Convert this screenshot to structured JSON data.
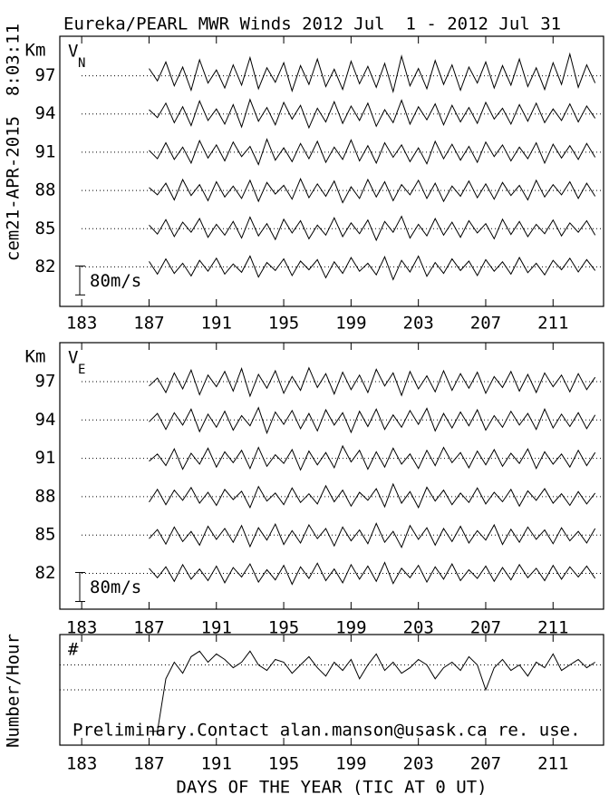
{
  "chart_data": [
    {
      "type": "line",
      "title": "Eureka/PEARL MWR Winds 2012 Jul  1 - 2012 Jul 31",
      "timestamp": "8:03:11",
      "run_label": "cem21-APR-2015",
      "ylabel": "Km",
      "panel_label": "V",
      "panel_subscript": "N",
      "color": "#000000",
      "xlim": [
        181.7,
        214
      ],
      "xticks": [
        183,
        187,
        191,
        195,
        199,
        203,
        207,
        211
      ],
      "ylim": [
        78.9,
        100.1
      ],
      "yticks": [
        82,
        85,
        88,
        91,
        94,
        97
      ],
      "grid": true,
      "scale_bar": {
        "value": 80,
        "label": "80m/s",
        "km": 2.27
      },
      "x": [
        187,
        187.5,
        188,
        188.5,
        189,
        189.5,
        190,
        190.5,
        191,
        191.5,
        192,
        192.5,
        193,
        193.5,
        194,
        194.5,
        195,
        195.5,
        196,
        196.5,
        197,
        197.5,
        198,
        198.5,
        199,
        199.5,
        200,
        200.5,
        201,
        201.5,
        202,
        202.5,
        203,
        203.5,
        204,
        204.5,
        205,
        205.5,
        206,
        206.5,
        207,
        207.5,
        208,
        208.5,
        209,
        209.5,
        210,
        210.5,
        211,
        211.5,
        212,
        212.5,
        213,
        213.5
      ],
      "series": [
        {
          "baseline": 82,
          "values": [
            15,
            -20,
            22,
            -18,
            10,
            -25,
            18,
            -12,
            24,
            -20,
            8,
            -15,
            30,
            -28,
            12,
            -10,
            22,
            -24,
            16,
            -8,
            20,
            -30,
            14,
            -18,
            26,
            -12,
            10,
            -22,
            28,
            -35,
            18,
            -14,
            30,
            -26,
            12,
            -18,
            22,
            -10,
            16,
            -24,
            20,
            -12,
            14,
            -20,
            26,
            -16,
            10,
            -22,
            18,
            -8,
            24,
            -14,
            20,
            -10
          ]
        },
        {
          "baseline": 85,
          "values": [
            10,
            -15,
            25,
            -22,
            18,
            -10,
            28,
            -24,
            12,
            -18,
            20,
            -26,
            32,
            -20,
            14,
            -30,
            26,
            -12,
            22,
            -28,
            10,
            -18,
            30,
            -22,
            16,
            -14,
            24,
            -32,
            20,
            -10,
            34,
            -26,
            12,
            -20,
            28,
            -18,
            18,
            -24,
            22,
            -12,
            14,
            -28,
            26,
            -16,
            20,
            -22,
            12,
            -14,
            24,
            -20,
            16,
            -10,
            22,
            -18
          ]
        },
        {
          "baseline": 88,
          "values": [
            8,
            -12,
            20,
            -26,
            30,
            -14,
            16,
            -28,
            24,
            -18,
            12,
            -22,
            28,
            -30,
            22,
            -10,
            14,
            -24,
            32,
            -20,
            18,
            -16,
            26,
            -34,
            10,
            -22,
            30,
            -18,
            24,
            -28,
            16,
            -12,
            28,
            -22,
            20,
            -30,
            12,
            -16,
            26,
            -20,
            18,
            -24,
            22,
            -14,
            14,
            -26,
            28,
            -18,
            16,
            -12,
            24,
            -22,
            20,
            -16
          ]
        },
        {
          "baseline": 91,
          "values": [
            5,
            -18,
            26,
            -20,
            14,
            -30,
            32,
            -16,
            20,
            -24,
            28,
            -12,
            16,
            -34,
            36,
            -22,
            12,
            -26,
            24,
            -18,
            30,
            -28,
            14,
            -20,
            34,
            -24,
            18,
            -30,
            26,
            -14,
            20,
            -26,
            12,
            -32,
            30,
            -18,
            22,
            -22,
            16,
            -28,
            28,
            -12,
            20,
            -24,
            14,
            -18,
            26,
            -30,
            22,
            -16,
            18,
            -20,
            24,
            -14
          ]
        },
        {
          "baseline": 94,
          "values": [
            12,
            -10,
            30,
            -24,
            20,
            -32,
            36,
            -18,
            14,
            -28,
            26,
            -36,
            40,
            -20,
            18,
            -30,
            32,
            -14,
            24,
            -38,
            16,
            -22,
            34,
            -26,
            22,
            -18,
            30,
            -34,
            12,
            -24,
            38,
            -28,
            20,
            -16,
            28,
            -30,
            24,
            -22,
            18,
            -26,
            32,
            -14,
            16,
            -28,
            26,
            -20,
            30,
            -24,
            14,
            -18,
            28,
            -22,
            22,
            -12
          ]
        },
        {
          "baseline": 97,
          "values": [
            20,
            -14,
            38,
            -28,
            24,
            -40,
            44,
            -20,
            16,
            -34,
            30,
            -26,
            50,
            -36,
            22,
            -18,
            36,
            -42,
            28,
            -24,
            46,
            -30,
            18,
            -38,
            40,
            -22,
            26,
            -32,
            34,
            -44,
            54,
            -28,
            20,
            -36,
            42,
            -24,
            30,
            -40,
            24,
            -20,
            38,
            -34,
            28,
            -26,
            46,
            -30,
            22,
            -38,
            36,
            -24,
            60,
            -32,
            30,
            -20
          ]
        }
      ]
    },
    {
      "type": "line",
      "ylabel": "Km",
      "panel_label": "V",
      "panel_subscript": "E",
      "color": "#000000",
      "xlim": [
        181.7,
        214
      ],
      "xticks": [
        183,
        187,
        191,
        195,
        199,
        203,
        207,
        211
      ],
      "ylim": [
        79.2,
        100.05
      ],
      "yticks": [
        82,
        85,
        88,
        91,
        94,
        97
      ],
      "grid": true,
      "scale_bar": {
        "value": 80,
        "label": "80m/s",
        "km": 2.27
      },
      "x": [
        187,
        187.5,
        188,
        188.5,
        189,
        189.5,
        190,
        190.5,
        191,
        191.5,
        192,
        192.5,
        193,
        193.5,
        194,
        194.5,
        195,
        195.5,
        196,
        196.5,
        197,
        197.5,
        198,
        198.5,
        199,
        199.5,
        200,
        200.5,
        201,
        201.5,
        202,
        202.5,
        203,
        203.5,
        204,
        204.5,
        205,
        205.5,
        206,
        206.5,
        207,
        207.5,
        208,
        208.5,
        209,
        209.5,
        210,
        210.5,
        211,
        211.5,
        212,
        212.5,
        213,
        213.5
      ],
      "series": [
        {
          "baseline": 82,
          "values": [
            14,
            -12,
            18,
            -22,
            24,
            -16,
            12,
            -20,
            20,
            -26,
            16,
            -10,
            26,
            -24,
            10,
            -18,
            22,
            -30,
            18,
            -14,
            28,
            -20,
            12,
            -26,
            24,
            -16,
            20,
            -22,
            30,
            -28,
            14,
            -12,
            22,
            -24,
            18,
            -16,
            26,
            -20,
            10,
            -14,
            20,
            -22,
            16,
            -18,
            24,
            -12,
            14,
            -20,
            22,
            -16,
            18,
            -10,
            20,
            -14
          ]
        },
        {
          "baseline": 85,
          "values": [
            -10,
            15,
            -25,
            22,
            -18,
            10,
            -28,
            24,
            -12,
            18,
            -20,
            26,
            -32,
            20,
            -14,
            30,
            -26,
            12,
            -22,
            28,
            -10,
            18,
            -30,
            22,
            -16,
            14,
            -24,
            32,
            -20,
            10,
            -34,
            26,
            -12,
            20,
            -28,
            18,
            -18,
            24,
            -22,
            12,
            -14,
            28,
            -26,
            16,
            -20,
            22,
            -12,
            14,
            -24,
            20,
            -16,
            10,
            -22,
            18
          ]
        },
        {
          "baseline": 88,
          "values": [
            -15,
            20,
            -22,
            18,
            -10,
            25,
            -18,
            12,
            -24,
            20,
            -8,
            15,
            -30,
            28,
            -12,
            10,
            -22,
            24,
            -16,
            8,
            -20,
            30,
            -14,
            18,
            -26,
            12,
            -10,
            22,
            -28,
            35,
            -18,
            14,
            -30,
            26,
            -12,
            18,
            -22,
            10,
            -16,
            24,
            -20,
            12,
            -14,
            20,
            -26,
            16,
            -10,
            22,
            -18,
            8,
            -24,
            14,
            -20,
            10
          ]
        },
        {
          "baseline": 91,
          "values": [
            -8,
            12,
            -20,
            26,
            -30,
            14,
            -16,
            28,
            -24,
            18,
            -12,
            22,
            -28,
            30,
            -22,
            10,
            -14,
            24,
            -32,
            20,
            -18,
            16,
            -26,
            34,
            -10,
            22,
            -30,
            18,
            -24,
            28,
            -16,
            12,
            -28,
            22,
            -20,
            30,
            -12,
            16,
            -26,
            20,
            -18,
            24,
            -22,
            14,
            -14,
            26,
            -28,
            18,
            -16,
            12,
            -24,
            22,
            -20,
            16
          ]
        },
        {
          "baseline": 94,
          "values": [
            -5,
            18,
            -26,
            20,
            -14,
            30,
            -32,
            16,
            -20,
            24,
            -28,
            12,
            -16,
            34,
            -36,
            22,
            -12,
            26,
            -24,
            18,
            -30,
            28,
            -14,
            20,
            -34,
            24,
            -18,
            30,
            -26,
            14,
            -20,
            26,
            -12,
            32,
            -30,
            18,
            -22,
            22,
            -16,
            28,
            -28,
            12,
            -20,
            24,
            -14,
            18,
            -26,
            30,
            -22,
            16,
            -18,
            20,
            -24,
            14
          ]
        },
        {
          "baseline": 97,
          "values": [
            -12,
            10,
            -30,
            24,
            -20,
            32,
            -36,
            18,
            -14,
            28,
            -26,
            36,
            -40,
            20,
            -18,
            30,
            -32,
            14,
            -24,
            38,
            -16,
            22,
            -34,
            26,
            -22,
            18,
            -30,
            34,
            -12,
            24,
            -38,
            28,
            -20,
            16,
            -28,
            30,
            -24,
            22,
            -18,
            26,
            -32,
            14,
            -16,
            28,
            -26,
            20,
            -30,
            24,
            -14,
            18,
            -28,
            22,
            -22,
            12
          ]
        }
      ]
    },
    {
      "type": "line",
      "ylabel": "Number/Hour",
      "panel_label": "#",
      "xlabel": "DAYS OF THE YEAR (TIC AT 0 UT)",
      "note": "Preliminary.Contact alan.manson@usask.ca re. use.",
      "color": "#000000",
      "xlim": [
        181.7,
        214
      ],
      "xticks": [
        183,
        187,
        191,
        195,
        199,
        203,
        207,
        211
      ],
      "ylim": [
        0,
        40
      ],
      "gridlines": [
        20,
        29
      ],
      "grid": true,
      "x": [
        187,
        187.5,
        188,
        188.5,
        189,
        189.5,
        190,
        190.5,
        191,
        191.5,
        192,
        192.5,
        193,
        193.5,
        194,
        194.5,
        195,
        195.5,
        196,
        196.5,
        197,
        197.5,
        198,
        198.5,
        199,
        199.5,
        200,
        200.5,
        201,
        201.5,
        202,
        202.5,
        203,
        203.5,
        204,
        204.5,
        205,
        205.5,
        206,
        206.5,
        207,
        207.5,
        208,
        208.5,
        209,
        209.5,
        210,
        210.5,
        211,
        211.5,
        212,
        212.5,
        213,
        213.5
      ],
      "values": [
        5,
        5,
        24,
        30,
        26,
        32,
        34,
        30,
        33,
        31,
        28,
        30,
        34,
        29,
        27,
        31,
        30,
        26,
        29,
        32,
        28,
        25,
        30,
        27,
        31,
        24,
        29,
        33,
        27,
        30,
        26,
        28,
        31,
        29,
        24,
        28,
        30,
        27,
        32,
        29,
        20,
        28,
        31,
        27,
        29,
        25,
        30,
        28,
        33,
        27,
        29,
        31,
        28,
        30
      ]
    }
  ]
}
